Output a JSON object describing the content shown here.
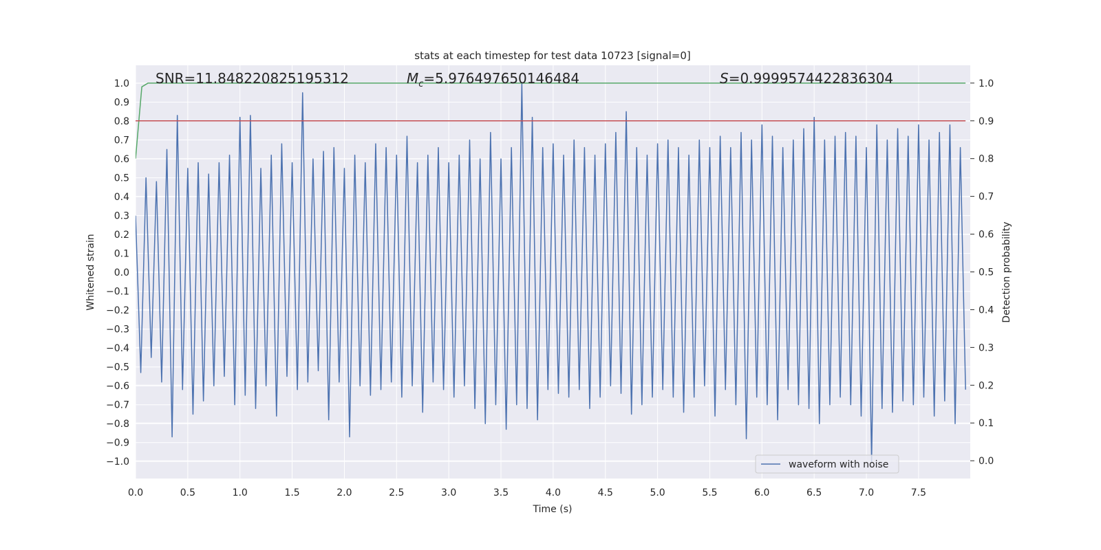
{
  "chart_data": {
    "type": "line",
    "title": "stats at each timestep for test data 10723 [signal=0]",
    "xlabel": "Time (s)",
    "ylabel": "Whitened strain",
    "y2label": "Detection probability",
    "annotations": [
      {
        "text": "SNR=11.848220825195312"
      },
      {
        "symbol": "M",
        "subscript": "c",
        "text": "=5.976497650146484"
      },
      {
        "symbol": "S",
        "text": "=0.9999574422836304"
      }
    ],
    "xlim": [
      0,
      7.995
    ],
    "ylim": [
      -1.09,
      1.095
    ],
    "y2lim": [
      -0.047,
      1.047
    ],
    "xticks": [
      {
        "value": 0,
        "label": "0.0"
      },
      0.5,
      {
        "value": 1,
        "label": "1.0"
      },
      1.5,
      {
        "value": 2,
        "label": "2.0"
      },
      2.5,
      {
        "value": 3,
        "label": "3.0"
      },
      3.5,
      {
        "value": 4,
        "label": "4.0"
      },
      4.5,
      {
        "value": 5,
        "label": "5.0"
      },
      5.5,
      {
        "value": 6,
        "label": "6.0"
      },
      6.5,
      {
        "value": 7,
        "label": "7.0"
      },
      7.5
    ],
    "yticks": [
      {
        "value": -1,
        "label": "−1.0"
      },
      {
        "value": -0.9,
        "label": "−0.9"
      },
      {
        "value": -0.8,
        "label": "−0.8"
      },
      {
        "value": -0.7,
        "label": "−0.7"
      },
      {
        "value": -0.6,
        "label": "−0.6"
      },
      {
        "value": -0.5,
        "label": "−0.5"
      },
      {
        "value": -0.4,
        "label": "−0.4"
      },
      {
        "value": -0.3,
        "label": "−0.3"
      },
      {
        "value": -0.2,
        "label": "−0.2"
      },
      {
        "value": -0.1,
        "label": "−0.1"
      },
      {
        "value": 0,
        "label": "0.0"
      },
      0.1,
      0.2,
      0.3,
      0.4,
      0.5,
      0.6,
      0.7,
      0.8,
      0.9,
      {
        "value": 1,
        "label": "1.0"
      }
    ],
    "y2ticks": [
      {
        "value": 0,
        "label": "0.0"
      },
      0.1,
      0.2,
      0.3,
      0.4,
      0.5,
      0.6,
      0.7,
      0.8,
      0.9,
      {
        "value": 1,
        "label": "1.0"
      }
    ],
    "grid": true,
    "legend": "lower right",
    "series": [
      {
        "name": "waveform with noise",
        "color": "#4c72b0",
        "x": [
          0,
          0.05,
          0.1,
          0.15,
          0.2,
          0.25,
          0.3,
          0.35,
          0.4,
          0.45,
          0.5,
          0.55,
          0.6,
          0.65,
          0.7,
          0.75,
          0.8,
          0.85,
          0.9,
          0.95,
          1,
          1.05,
          1.1,
          1.15,
          1.2,
          1.25,
          1.3,
          1.35,
          1.4,
          1.45,
          1.5,
          1.55,
          1.6,
          1.65,
          1.7,
          1.75,
          1.8,
          1.85,
          1.9,
          1.95,
          2,
          2.05,
          2.1,
          2.15,
          2.2,
          2.25,
          2.3,
          2.35,
          2.4,
          2.45,
          2.5,
          2.55,
          2.6,
          2.65,
          2.7,
          2.75,
          2.8,
          2.85,
          2.9,
          2.95,
          3,
          3.05,
          3.1,
          3.15,
          3.2,
          3.25,
          3.3,
          3.35,
          3.4,
          3.45,
          3.5,
          3.55,
          3.6,
          3.65,
          3.7,
          3.75,
          3.8,
          3.85,
          3.9,
          3.95,
          4,
          4.05,
          4.1,
          4.15,
          4.2,
          4.25,
          4.3,
          4.35,
          4.4,
          4.45,
          4.5,
          4.55,
          4.6,
          4.65,
          4.7,
          4.75,
          4.8,
          4.85,
          4.9,
          4.95,
          5,
          5.05,
          5.1,
          5.15,
          5.2,
          5.25,
          5.3,
          5.35,
          5.4,
          5.45,
          5.5,
          5.55,
          5.6,
          5.65,
          5.7,
          5.75,
          5.8,
          5.85,
          5.9,
          5.95,
          6,
          6.05,
          6.1,
          6.15,
          6.2,
          6.25,
          6.3,
          6.35,
          6.4,
          6.45,
          6.5,
          6.55,
          6.6,
          6.65,
          6.7,
          6.75,
          6.8,
          6.85,
          6.9,
          6.95,
          7,
          7.05,
          7.1,
          7.15,
          7.2,
          7.25,
          7.3,
          7.35,
          7.4,
          7.45,
          7.5,
          7.55,
          7.6,
          7.65,
          7.7,
          7.75,
          7.8,
          7.85,
          7.9,
          7.95
        ],
        "values": [
          0.3,
          -0.53,
          0.5,
          -0.45,
          0.48,
          -0.58,
          0.65,
          -0.87,
          0.83,
          -0.62,
          0.55,
          -0.75,
          0.58,
          -0.68,
          0.52,
          -0.6,
          0.58,
          -0.55,
          0.62,
          -0.7,
          0.82,
          -0.65,
          0.83,
          -0.72,
          0.55,
          -0.6,
          0.62,
          -0.76,
          0.68,
          -0.55,
          0.58,
          -0.62,
          0.95,
          -0.58,
          0.6,
          -0.52,
          0.64,
          -0.78,
          0.66,
          -0.58,
          0.55,
          -0.87,
          0.62,
          -0.6,
          0.58,
          -0.65,
          0.68,
          -0.62,
          0.66,
          -0.58,
          0.62,
          -0.66,
          0.72,
          -0.6,
          0.58,
          -0.74,
          0.62,
          -0.58,
          0.66,
          -0.62,
          0.58,
          -0.66,
          0.62,
          -0.6,
          0.7,
          -0.72,
          0.6,
          -0.8,
          0.74,
          -0.7,
          0.6,
          -0.83,
          0.66,
          -0.7,
          1.0,
          -0.72,
          0.82,
          -0.78,
          0.66,
          -0.62,
          0.68,
          -0.64,
          0.62,
          -0.66,
          0.7,
          -0.62,
          0.66,
          -0.72,
          0.62,
          -0.66,
          0.68,
          -0.6,
          0.74,
          -0.64,
          0.85,
          -0.75,
          0.66,
          -0.7,
          0.62,
          -0.66,
          0.68,
          -0.62,
          0.7,
          -0.66,
          0.66,
          -0.74,
          0.62,
          -0.66,
          0.7,
          -0.6,
          0.66,
          -0.76,
          0.72,
          -0.62,
          0.66,
          -0.7,
          0.74,
          -0.88,
          0.7,
          -0.66,
          0.78,
          -0.7,
          0.72,
          -0.78,
          0.66,
          -0.62,
          0.7,
          -0.7,
          0.76,
          -0.72,
          0.82,
          -0.8,
          0.7,
          -0.7,
          0.72,
          -0.66,
          0.74,
          -0.7,
          0.72,
          -0.76,
          0.66,
          -1.0,
          0.78,
          -0.72,
          0.7,
          -0.74,
          0.76,
          -0.68,
          0.72,
          -0.7,
          0.78,
          -0.66,
          0.7,
          -0.76,
          0.74,
          -0.68,
          0.78,
          -0.8,
          0.66,
          -0.62
        ]
      },
      {
        "color": "#55a868",
        "axis": "y2",
        "x": [
          0,
          0.06,
          0.12,
          7.95
        ],
        "values": [
          0.8,
          0.99,
          1.0,
          1.0
        ]
      },
      {
        "color": "#c44e52",
        "axis": "y2",
        "x": [
          0,
          7.95
        ],
        "values": [
          0.9,
          0.9
        ]
      }
    ]
  }
}
